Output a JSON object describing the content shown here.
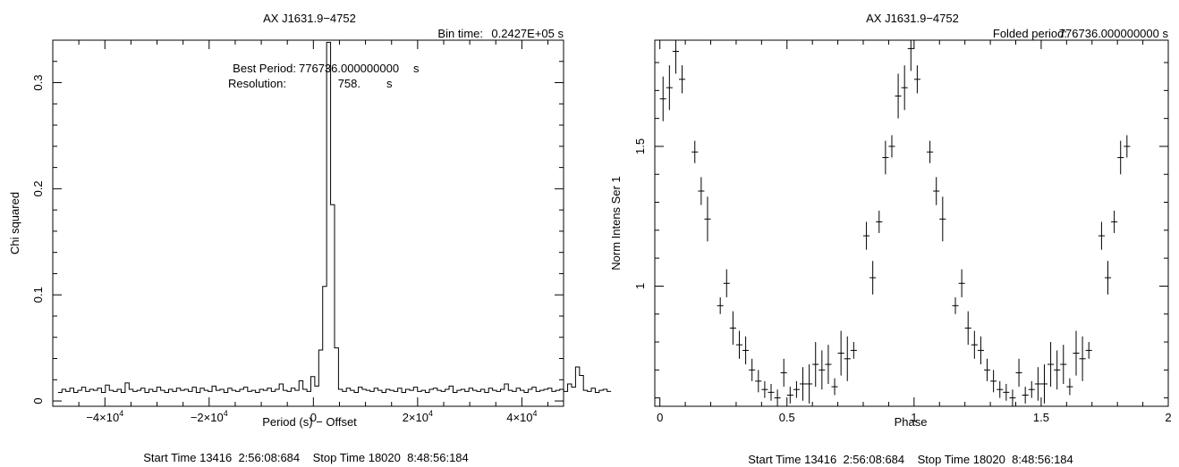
{
  "chart_data": [
    {
      "type": "line",
      "title": "AX J1631.9−4752",
      "bin_time_label": "Bin time:",
      "bin_time_value": "0.2427E+05 s",
      "annotation_line1_label": "Best Period:",
      "annotation_line1_value": "776736.000000000",
      "annotation_line1_unit": "s",
      "annotation_line2_label": "Resolution:",
      "annotation_line2_value": "758.",
      "annotation_line2_unit": "s",
      "xlabel": "Period (s) − Offset",
      "ylabel": "Chi squared",
      "xlim": [
        -50000,
        48000
      ],
      "ylim": [
        -0.005,
        0.34
      ],
      "grid": false,
      "x_ticks": [
        {
          "value": -40000,
          "base": "−4×10",
          "exp": "4"
        },
        {
          "value": -20000,
          "base": "−2×10",
          "exp": "4"
        },
        {
          "value": 0,
          "base": "0",
          "exp": ""
        },
        {
          "value": 20000,
          "base": "2×10",
          "exp": "4"
        },
        {
          "value": 40000,
          "base": "4×10",
          "exp": "4"
        }
      ],
      "y_ticks": [
        {
          "value": 0,
          "label": "0"
        },
        {
          "value": 0.1,
          "label": "0.1"
        },
        {
          "value": 0.2,
          "label": "0.2"
        },
        {
          "value": 0.3,
          "label": "0.3"
        }
      ],
      "series": [
        {
          "x_start": -49000,
          "step": 758,
          "values": [
            0.008,
            0.011,
            0.009,
            0.012,
            0.008,
            0.01,
            0.013,
            0.009,
            0.011,
            0.01,
            0.012,
            0.008,
            0.015,
            0.01,
            0.009,
            0.011,
            0.008,
            0.017,
            0.011,
            0.009,
            0.01,
            0.012,
            0.008,
            0.011,
            0.009,
            0.013,
            0.01,
            0.008,
            0.011,
            0.009,
            0.012,
            0.01,
            0.011,
            0.009,
            0.013,
            0.008,
            0.012,
            0.01,
            0.009,
            0.014,
            0.01,
            0.011,
            0.008,
            0.012,
            0.01,
            0.009,
            0.011,
            0.013,
            0.009,
            0.01,
            0.008,
            0.011,
            0.01,
            0.012,
            0.009,
            0.011,
            0.016,
            0.01,
            0.009,
            0.012,
            0.01,
            0.019,
            0.011,
            0.009,
            0.023,
            0.014,
            0.048,
            0.108,
            0.338,
            0.185,
            0.05,
            0.011,
            0.009,
            0.012,
            0.01,
            0.008,
            0.013,
            0.011,
            0.01,
            0.009,
            0.012,
            0.01,
            0.008,
            0.011,
            0.01,
            0.009,
            0.012,
            0.008,
            0.011,
            0.01,
            0.013,
            0.009,
            0.01,
            0.008,
            0.011,
            0.012,
            0.01,
            0.009,
            0.011,
            0.014,
            0.008,
            0.01,
            0.011,
            0.009,
            0.012,
            0.01,
            0.009,
            0.011,
            0.008,
            0.012,
            0.01,
            0.009,
            0.011,
            0.016,
            0.01,
            0.009,
            0.012,
            0.01,
            0.008,
            0.011,
            0.013,
            0.009,
            0.01,
            0.011,
            0.012,
            0.009,
            0.01,
            0.011,
            0.009,
            0.016,
            0.013,
            0.032,
            0.024,
            0.01,
            0.009,
            0.012,
            0.008,
            0.01,
            0.011,
            0.009
          ]
        }
      ],
      "footer": "Start Time 13416  2:56:08:684    Stop Time 18020  8:48:56:184"
    },
    {
      "type": "scatter",
      "title": "AX J1631.9−4752",
      "folded_label": "Folded period:",
      "folded_value": "776736.000000000 s",
      "xlabel": "Phase",
      "ylabel": "Norm Intens Ser 1",
      "xlim": [
        -0.02,
        2.0
      ],
      "ylim": [
        0.57,
        1.88
      ],
      "grid": false,
      "x_ticks": [
        {
          "value": 0,
          "label": "0"
        },
        {
          "value": 0.5,
          "label": "0.5"
        },
        {
          "value": 1,
          "label": "1"
        },
        {
          "value": 1.5,
          "label": "1.5"
        },
        {
          "value": 2,
          "label": "2"
        }
      ],
      "y_ticks": [
        {
          "value": 1,
          "label": "1"
        },
        {
          "value": 1.5,
          "label": "1.5"
        }
      ],
      "x_half_width": 0.0125,
      "points": [
        {
          "x": 0.0125,
          "y": 1.67,
          "err": 0.08
        },
        {
          "x": 0.0375,
          "y": 1.71,
          "err": 0.08
        },
        {
          "x": 0.0625,
          "y": 1.84,
          "err": 0.08
        },
        {
          "x": 0.0875,
          "y": 1.74,
          "err": 0.05
        },
        {
          "x": 0.1375,
          "y": 1.48,
          "err": 0.04
        },
        {
          "x": 0.1625,
          "y": 1.34,
          "err": 0.05
        },
        {
          "x": 0.1875,
          "y": 1.24,
          "err": 0.08
        },
        {
          "x": 0.2375,
          "y": 0.93,
          "err": 0.03
        },
        {
          "x": 0.2625,
          "y": 1.01,
          "err": 0.05
        },
        {
          "x": 0.2875,
          "y": 0.85,
          "err": 0.06
        },
        {
          "x": 0.3125,
          "y": 0.79,
          "err": 0.05
        },
        {
          "x": 0.3375,
          "y": 0.77,
          "err": 0.05
        },
        {
          "x": 0.3625,
          "y": 0.7,
          "err": 0.04
        },
        {
          "x": 0.3875,
          "y": 0.66,
          "err": 0.04
        },
        {
          "x": 0.4125,
          "y": 0.63,
          "err": 0.03
        },
        {
          "x": 0.4375,
          "y": 0.62,
          "err": 0.03
        },
        {
          "x": 0.4625,
          "y": 0.6,
          "err": 0.03
        },
        {
          "x": 0.4875,
          "y": 0.69,
          "err": 0.05
        },
        {
          "x": 0.5125,
          "y": 0.61,
          "err": 0.03
        },
        {
          "x": 0.5375,
          "y": 0.63,
          "err": 0.03
        },
        {
          "x": 0.5625,
          "y": 0.65,
          "err": 0.06
        },
        {
          "x": 0.5875,
          "y": 0.65,
          "err": 0.07
        },
        {
          "x": 0.6125,
          "y": 0.72,
          "err": 0.08
        },
        {
          "x": 0.6375,
          "y": 0.7,
          "err": 0.07
        },
        {
          "x": 0.6625,
          "y": 0.72,
          "err": 0.07
        },
        {
          "x": 0.6875,
          "y": 0.64,
          "err": 0.03
        },
        {
          "x": 0.7125,
          "y": 0.76,
          "err": 0.08
        },
        {
          "x": 0.7375,
          "y": 0.74,
          "err": 0.08
        },
        {
          "x": 0.7625,
          "y": 0.77,
          "err": 0.03
        },
        {
          "x": 0.8125,
          "y": 1.18,
          "err": 0.05
        },
        {
          "x": 0.8375,
          "y": 1.03,
          "err": 0.06
        },
        {
          "x": 0.8625,
          "y": 1.23,
          "err": 0.04
        },
        {
          "x": 0.8875,
          "y": 1.46,
          "err": 0.06
        },
        {
          "x": 0.9125,
          "y": 1.5,
          "err": 0.04
        },
        {
          "x": 0.9375,
          "y": 1.68,
          "err": 0.08
        },
        {
          "x": 0.9625,
          "y": 1.71,
          "err": 0.08
        },
        {
          "x": 0.9875,
          "y": 1.85,
          "err": 0.08
        },
        {
          "x": 1.0125,
          "y": 1.74,
          "err": 0.05
        },
        {
          "x": 1.0625,
          "y": 1.48,
          "err": 0.04
        },
        {
          "x": 1.0875,
          "y": 1.34,
          "err": 0.05
        },
        {
          "x": 1.1125,
          "y": 1.24,
          "err": 0.08
        },
        {
          "x": 1.1625,
          "y": 0.93,
          "err": 0.03
        },
        {
          "x": 1.1875,
          "y": 1.01,
          "err": 0.05
        },
        {
          "x": 1.2125,
          "y": 0.85,
          "err": 0.06
        },
        {
          "x": 1.2375,
          "y": 0.79,
          "err": 0.05
        },
        {
          "x": 1.2625,
          "y": 0.77,
          "err": 0.05
        },
        {
          "x": 1.2875,
          "y": 0.7,
          "err": 0.04
        },
        {
          "x": 1.3125,
          "y": 0.66,
          "err": 0.04
        },
        {
          "x": 1.3375,
          "y": 0.63,
          "err": 0.03
        },
        {
          "x": 1.3625,
          "y": 0.62,
          "err": 0.03
        },
        {
          "x": 1.3875,
          "y": 0.6,
          "err": 0.03
        },
        {
          "x": 1.4125,
          "y": 0.69,
          "err": 0.05
        },
        {
          "x": 1.4375,
          "y": 0.61,
          "err": 0.03
        },
        {
          "x": 1.4625,
          "y": 0.63,
          "err": 0.03
        },
        {
          "x": 1.4875,
          "y": 0.65,
          "err": 0.06
        },
        {
          "x": 1.5125,
          "y": 0.65,
          "err": 0.07
        },
        {
          "x": 1.5375,
          "y": 0.72,
          "err": 0.08
        },
        {
          "x": 1.5625,
          "y": 0.7,
          "err": 0.07
        },
        {
          "x": 1.5875,
          "y": 0.72,
          "err": 0.07
        },
        {
          "x": 1.6125,
          "y": 0.64,
          "err": 0.03
        },
        {
          "x": 1.6375,
          "y": 0.76,
          "err": 0.08
        },
        {
          "x": 1.6625,
          "y": 0.74,
          "err": 0.08
        },
        {
          "x": 1.6875,
          "y": 0.77,
          "err": 0.03
        },
        {
          "x": 1.7375,
          "y": 1.18,
          "err": 0.05
        },
        {
          "x": 1.7625,
          "y": 1.03,
          "err": 0.06
        },
        {
          "x": 1.7875,
          "y": 1.23,
          "err": 0.04
        },
        {
          "x": 1.8125,
          "y": 1.46,
          "err": 0.06
        },
        {
          "x": 1.8375,
          "y": 1.5,
          "err": 0.04
        }
      ],
      "footer": "Start Time 13416  2:56:08:684    Stop Time 18020  8:48:56:184"
    }
  ]
}
